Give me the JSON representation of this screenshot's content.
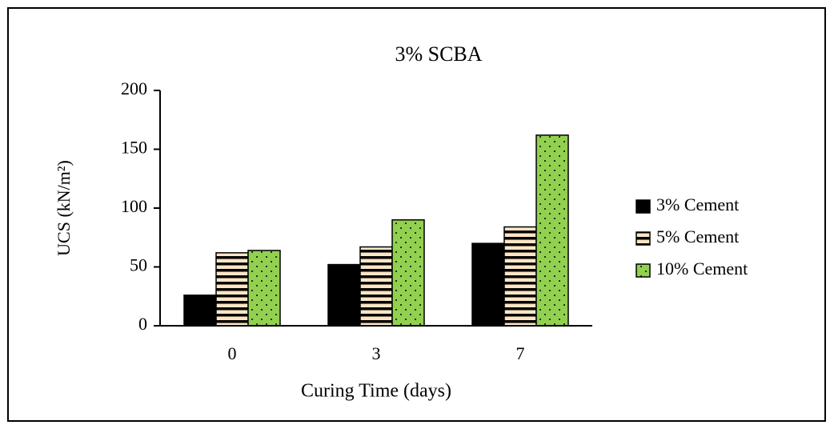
{
  "chart_data": {
    "type": "bar",
    "title": "3% SCBA",
    "x_label": "Curing Time (days)",
    "y_label": "UCS (kN/m²)",
    "categories": [
      "0",
      "3",
      "7"
    ],
    "series": [
      {
        "name": "3% Cement",
        "color": "#000000",
        "pattern": "solid",
        "values": [
          26,
          52,
          70
        ]
      },
      {
        "name": "5% Cement",
        "color": "#fbe5c4",
        "pattern": "stripes",
        "values": [
          62,
          67,
          84
        ]
      },
      {
        "name": "10% Cement",
        "color": "#92d050",
        "pattern": "dots",
        "values": [
          64,
          90,
          162
        ]
      }
    ],
    "ylim": [
      0,
      200
    ],
    "yticks": [
      0,
      50,
      100,
      150,
      200
    ],
    "legend": "right"
  }
}
